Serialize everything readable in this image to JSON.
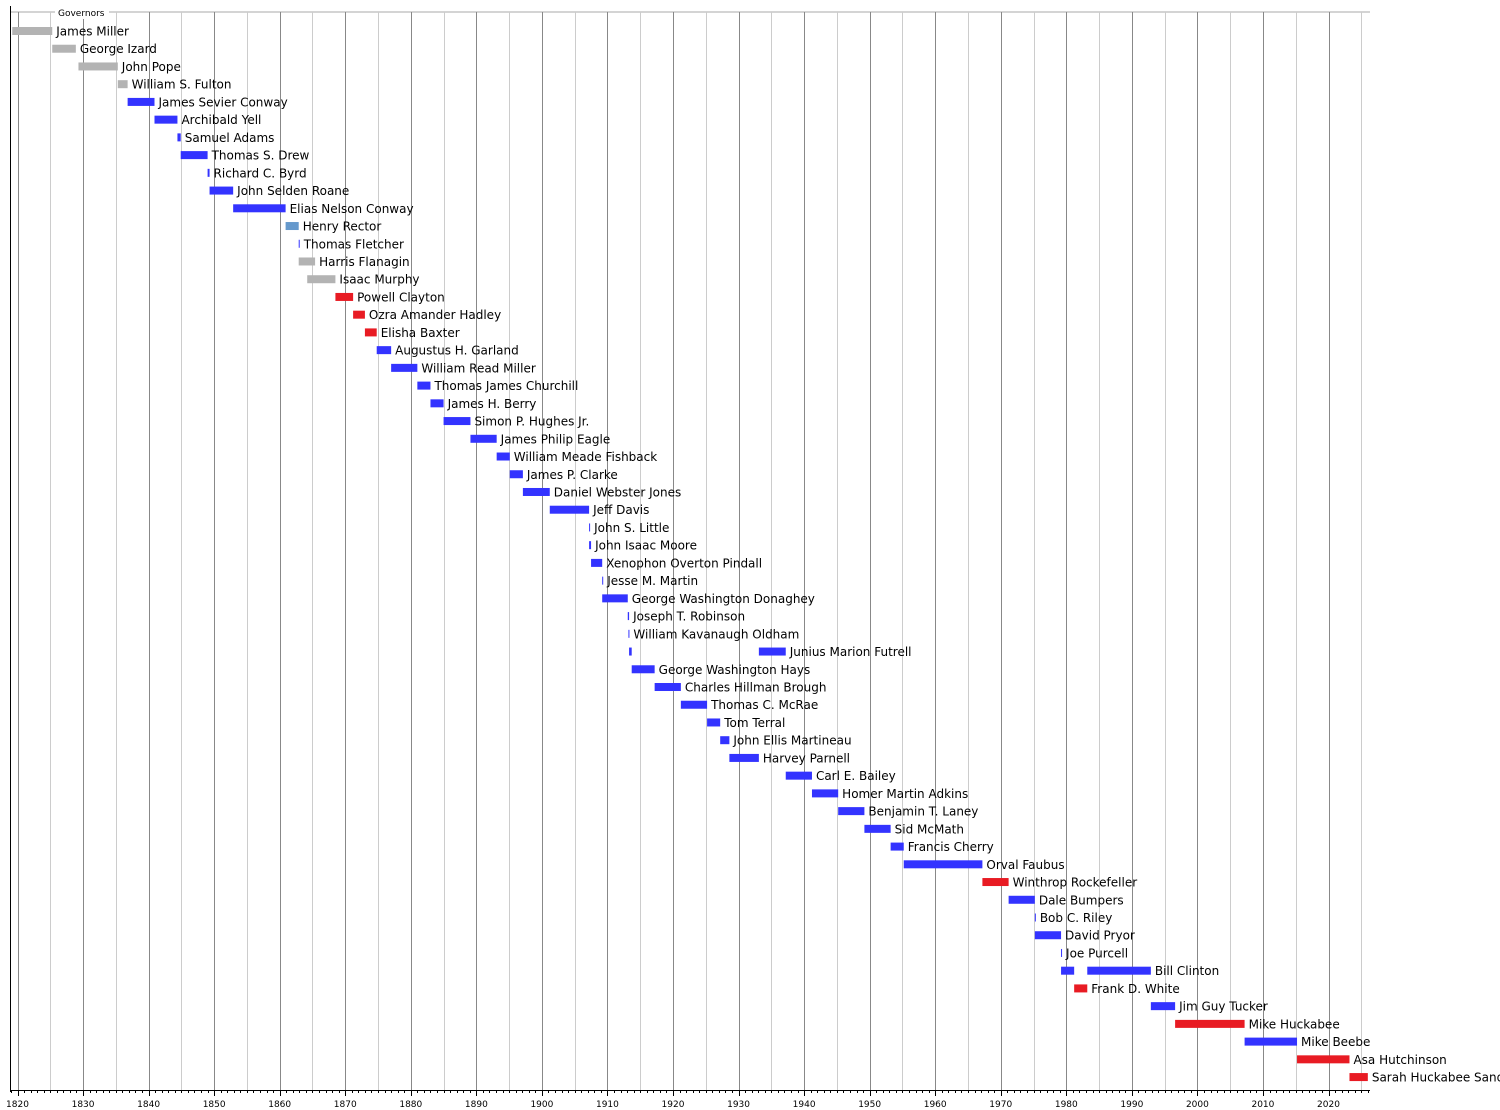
{
  "chart_data": {
    "type": "timeline",
    "legend_title": "Governors",
    "xlim": [
      1819,
      2026
    ],
    "x_ticks": [
      1820,
      1830,
      1840,
      1850,
      1860,
      1870,
      1880,
      1890,
      1900,
      1910,
      1920,
      1930,
      1940,
      1950,
      1960,
      1970,
      1980,
      1990,
      2000,
      2010,
      2020
    ],
    "grid": "vertical, major every 10 years, minor every 5 years",
    "party_colors": {
      "pre-statehood": "#b3b3b3",
      "democratic": "#3333ff",
      "unionist": "#6699cc",
      "republican": "#e81b23"
    },
    "governors": [
      {
        "name": "James Miller",
        "terms": [
          [
            1819.2,
            1825.3
          ]
        ],
        "party": "pre-statehood"
      },
      {
        "name": "George Izard",
        "terms": [
          [
            1825.3,
            1828.9
          ]
        ],
        "party": "pre-statehood"
      },
      {
        "name": "John Pope",
        "terms": [
          [
            1829.3,
            1835.3
          ]
        ],
        "party": "pre-statehood"
      },
      {
        "name": "William S. Fulton",
        "terms": [
          [
            1835.3,
            1836.8
          ]
        ],
        "party": "pre-statehood"
      },
      {
        "name": "James Sevier Conway",
        "terms": [
          [
            1836.8,
            1840.9
          ]
        ],
        "party": "democratic"
      },
      {
        "name": "Archibald Yell",
        "terms": [
          [
            1840.9,
            1844.4
          ]
        ],
        "party": "democratic"
      },
      {
        "name": "Samuel Adams",
        "terms": [
          [
            1844.4,
            1844.9
          ]
        ],
        "party": "democratic"
      },
      {
        "name": "Thomas S. Drew",
        "terms": [
          [
            1844.9,
            1849.0
          ]
        ],
        "party": "democratic"
      },
      {
        "name": "Richard C. Byrd",
        "terms": [
          [
            1849.0,
            1849.3
          ]
        ],
        "party": "democratic"
      },
      {
        "name": "John Selden Roane",
        "terms": [
          [
            1849.3,
            1852.9
          ]
        ],
        "party": "democratic"
      },
      {
        "name": "Elias Nelson Conway",
        "terms": [
          [
            1852.9,
            1860.9
          ]
        ],
        "party": "democratic"
      },
      {
        "name": "Henry Rector",
        "terms": [
          [
            1860.9,
            1862.9
          ]
        ],
        "party": "unionist"
      },
      {
        "name": "Thomas Fletcher",
        "terms": [
          [
            1862.9,
            1863.0
          ]
        ],
        "party": "democratic"
      },
      {
        "name": "Harris Flanagin",
        "terms": [
          [
            1862.9,
            1865.4
          ]
        ],
        "party": "pre-statehood"
      },
      {
        "name": "Isaac Murphy",
        "terms": [
          [
            1864.2,
            1868.5
          ]
        ],
        "party": "pre-statehood"
      },
      {
        "name": "Powell Clayton",
        "terms": [
          [
            1868.5,
            1871.2
          ]
        ],
        "party": "republican"
      },
      {
        "name": "Ozra Amander Hadley",
        "terms": [
          [
            1871.2,
            1873.0
          ]
        ],
        "party": "republican"
      },
      {
        "name": "Elisha Baxter",
        "terms": [
          [
            1873.0,
            1874.8
          ]
        ],
        "party": "republican"
      },
      {
        "name": "Augustus H. Garland",
        "terms": [
          [
            1874.8,
            1877.0
          ]
        ],
        "party": "democratic"
      },
      {
        "name": "William Read Miller",
        "terms": [
          [
            1877.0,
            1881.0
          ]
        ],
        "party": "democratic"
      },
      {
        "name": "Thomas James Churchill",
        "terms": [
          [
            1881.0,
            1883.0
          ]
        ],
        "party": "democratic"
      },
      {
        "name": "James H. Berry",
        "terms": [
          [
            1883.0,
            1885.0
          ]
        ],
        "party": "democratic"
      },
      {
        "name": "Simon P. Hughes Jr.",
        "terms": [
          [
            1885.0,
            1889.1
          ]
        ],
        "party": "democratic"
      },
      {
        "name": "James Philip Eagle",
        "terms": [
          [
            1889.1,
            1893.1
          ]
        ],
        "party": "democratic"
      },
      {
        "name": "William Meade Fishback",
        "terms": [
          [
            1893.1,
            1895.1
          ]
        ],
        "party": "democratic"
      },
      {
        "name": "James P. Clarke",
        "terms": [
          [
            1895.1,
            1897.1
          ]
        ],
        "party": "democratic"
      },
      {
        "name": "Daniel Webster Jones",
        "terms": [
          [
            1897.1,
            1901.2
          ]
        ],
        "party": "democratic"
      },
      {
        "name": "Jeff Davis",
        "terms": [
          [
            1901.2,
            1907.2
          ]
        ],
        "party": "democratic"
      },
      {
        "name": "John S. Little",
        "terms": [
          [
            1907.2,
            1907.3
          ]
        ],
        "party": "democratic"
      },
      {
        "name": "John Isaac Moore",
        "terms": [
          [
            1907.2,
            1907.5
          ]
        ],
        "party": "democratic"
      },
      {
        "name": "Xenophon Overton Pindall",
        "terms": [
          [
            1907.5,
            1909.2
          ]
        ],
        "party": "democratic"
      },
      {
        "name": "Jesse M. Martin",
        "terms": [
          [
            1909.2,
            1909.3
          ]
        ],
        "party": "democratic"
      },
      {
        "name": "George Washington Donaghey",
        "terms": [
          [
            1909.2,
            1913.1
          ]
        ],
        "party": "democratic"
      },
      {
        "name": "Joseph T. Robinson",
        "terms": [
          [
            1913.1,
            1913.3
          ]
        ],
        "party": "democratic"
      },
      {
        "name": "William Kavanaugh Oldham",
        "terms": [
          [
            1913.2,
            1913.3
          ]
        ],
        "party": "democratic"
      },
      {
        "name": "Junius Marion Futrell",
        "terms": [
          [
            1913.3,
            1913.7
          ],
          [
            1933.1,
            1937.2
          ]
        ],
        "party": "democratic"
      },
      {
        "name": "George Washington Hays",
        "terms": [
          [
            1913.7,
            1917.2
          ]
        ],
        "party": "democratic"
      },
      {
        "name": "Charles Hillman Brough",
        "terms": [
          [
            1917.2,
            1921.2
          ]
        ],
        "party": "democratic"
      },
      {
        "name": "Thomas C. McRae",
        "terms": [
          [
            1921.2,
            1925.2
          ]
        ],
        "party": "democratic"
      },
      {
        "name": "Tom Terral",
        "terms": [
          [
            1925.2,
            1927.2
          ]
        ],
        "party": "democratic"
      },
      {
        "name": "John Ellis Martineau",
        "terms": [
          [
            1927.2,
            1928.6
          ]
        ],
        "party": "democratic"
      },
      {
        "name": "Harvey Parnell",
        "terms": [
          [
            1928.6,
            1933.1
          ]
        ],
        "party": "democratic"
      },
      {
        "name": "Carl E. Bailey",
        "terms": [
          [
            1937.2,
            1941.2
          ]
        ],
        "party": "democratic"
      },
      {
        "name": "Homer Martin Adkins",
        "terms": [
          [
            1941.2,
            1945.2
          ]
        ],
        "party": "democratic"
      },
      {
        "name": "Benjamin T. Laney",
        "terms": [
          [
            1945.2,
            1949.2
          ]
        ],
        "party": "democratic"
      },
      {
        "name": "Sid McMath",
        "terms": [
          [
            1949.2,
            1953.2
          ]
        ],
        "party": "democratic"
      },
      {
        "name": "Francis Cherry",
        "terms": [
          [
            1953.2,
            1955.2
          ]
        ],
        "party": "democratic"
      },
      {
        "name": "Orval Faubus",
        "terms": [
          [
            1955.2,
            1967.2
          ]
        ],
        "party": "democratic"
      },
      {
        "name": "Winthrop Rockefeller",
        "terms": [
          [
            1967.2,
            1971.2
          ]
        ],
        "party": "republican"
      },
      {
        "name": "Dale Bumpers",
        "terms": [
          [
            1971.2,
            1975.2
          ]
        ],
        "party": "democratic"
      },
      {
        "name": "Bob C. Riley",
        "terms": [
          [
            1975.2,
            1975.3
          ]
        ],
        "party": "democratic"
      },
      {
        "name": "David Pryor",
        "terms": [
          [
            1975.2,
            1979.2
          ]
        ],
        "party": "democratic"
      },
      {
        "name": "Joe Purcell",
        "terms": [
          [
            1979.2,
            1979.3
          ]
        ],
        "party": "democratic"
      },
      {
        "name": "Bill Clinton",
        "terms": [
          [
            1979.2,
            1981.2
          ],
          [
            1983.2,
            1992.9
          ]
        ],
        "party": "democratic"
      },
      {
        "name": "Frank D. White",
        "terms": [
          [
            1981.2,
            1983.2
          ]
        ],
        "party": "republican"
      },
      {
        "name": "Jim Guy Tucker",
        "terms": [
          [
            1992.9,
            1996.6
          ]
        ],
        "party": "democratic"
      },
      {
        "name": "Mike Huckabee",
        "terms": [
          [
            1996.6,
            2007.2
          ]
        ],
        "party": "republican"
      },
      {
        "name": "Mike Beebe",
        "terms": [
          [
            2007.2,
            2015.2
          ]
        ],
        "party": "democratic"
      },
      {
        "name": "Asa Hutchinson",
        "terms": [
          [
            2015.2,
            2023.2
          ]
        ],
        "party": "republican"
      },
      {
        "name": "Sarah Huckabee Sanders",
        "terms": [
          [
            2023.2,
            2026.0
          ]
        ],
        "party": "republican"
      }
    ]
  }
}
